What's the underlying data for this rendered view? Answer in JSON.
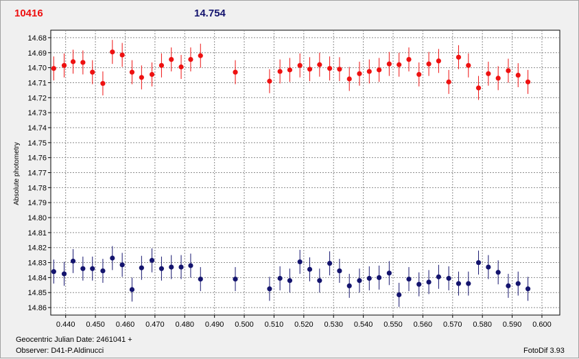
{
  "header": {
    "object_label": "10416",
    "comparison_value": "14.754"
  },
  "footer": {
    "date_label": "Geocentric Julian Date: 2461041 +",
    "observer_label": "Observer: D41-P.Aldinucci",
    "software_label": "FotoDif 3.93"
  },
  "chart_data": {
    "type": "scatter",
    "title": "",
    "xlabel": "",
    "ylabel": "Absolute photometry",
    "xlim": [
      0.435,
      0.606
    ],
    "ylim": [
      14.675,
      14.865
    ],
    "y_inverted": true,
    "grid": true,
    "x_ticks": [
      "0.440",
      "0.450",
      "0.460",
      "0.470",
      "0.480",
      "0.490",
      "0.500",
      "0.510",
      "0.520",
      "0.530",
      "0.540",
      "0.550",
      "0.560",
      "0.570",
      "0.580",
      "0.590",
      "0.600"
    ],
    "y_ticks": [
      "14.68",
      "14.69",
      "14.70",
      "14.71",
      "14.72",
      "14.73",
      "14.74",
      "14.75",
      "14.76",
      "14.77",
      "14.78",
      "14.79",
      "14.80",
      "14.81",
      "14.82",
      "14.83",
      "14.84",
      "14.85",
      "14.86"
    ],
    "error_bar": 0.008,
    "series": [
      {
        "color": "#ee1111",
        "points": [
          [
            0.436,
            14.7005
          ],
          [
            0.4395,
            14.6985
          ],
          [
            0.4425,
            14.696
          ],
          [
            0.4458,
            14.6965
          ],
          [
            0.449,
            14.703
          ],
          [
            0.4525,
            14.7105
          ],
          [
            0.4557,
            14.6895
          ],
          [
            0.459,
            14.6915
          ],
          [
            0.4623,
            14.703
          ],
          [
            0.4655,
            14.7065
          ],
          [
            0.469,
            14.7045
          ],
          [
            0.4722,
            14.6985
          ],
          [
            0.4755,
            14.6945
          ],
          [
            0.4788,
            14.6995
          ],
          [
            0.482,
            14.6945
          ],
          [
            0.4853,
            14.692
          ],
          [
            0.497,
            14.703
          ],
          [
            0.5085,
            14.709
          ],
          [
            0.512,
            14.7025
          ],
          [
            0.5153,
            14.7015
          ],
          [
            0.5187,
            14.6985
          ],
          [
            0.522,
            14.701
          ],
          [
            0.5253,
            14.698
          ],
          [
            0.5287,
            14.7005
          ],
          [
            0.532,
            14.701
          ],
          [
            0.5353,
            14.7075
          ],
          [
            0.5387,
            14.704
          ],
          [
            0.542,
            14.7025
          ],
          [
            0.5453,
            14.7015
          ],
          [
            0.5487,
            14.6975
          ],
          [
            0.552,
            14.698
          ],
          [
            0.5553,
            14.6945
          ],
          [
            0.5587,
            14.7045
          ],
          [
            0.562,
            14.6975
          ],
          [
            0.5653,
            14.6955
          ],
          [
            0.5687,
            14.7095
          ],
          [
            0.572,
            14.693
          ],
          [
            0.5753,
            14.6985
          ],
          [
            0.5787,
            14.7135
          ],
          [
            0.582,
            14.704
          ],
          [
            0.5853,
            14.707
          ],
          [
            0.5887,
            14.702
          ],
          [
            0.592,
            14.705
          ],
          [
            0.5953,
            14.7095
          ]
        ]
      },
      {
        "color": "#14146e",
        "points": [
          [
            0.436,
            14.836
          ],
          [
            0.4395,
            14.8375
          ],
          [
            0.4425,
            14.829
          ],
          [
            0.4458,
            14.834
          ],
          [
            0.449,
            14.834
          ],
          [
            0.4525,
            14.8355
          ],
          [
            0.4557,
            14.827
          ],
          [
            0.459,
            14.8315
          ],
          [
            0.4623,
            14.848
          ],
          [
            0.4655,
            14.8335
          ],
          [
            0.469,
            14.8285
          ],
          [
            0.4722,
            14.834
          ],
          [
            0.4755,
            14.833
          ],
          [
            0.4788,
            14.833
          ],
          [
            0.482,
            14.832
          ],
          [
            0.4853,
            14.841
          ],
          [
            0.497,
            14.841
          ],
          [
            0.5085,
            14.8475
          ],
          [
            0.512,
            14.8405
          ],
          [
            0.5153,
            14.842
          ],
          [
            0.5187,
            14.8295
          ],
          [
            0.522,
            14.8345
          ],
          [
            0.5253,
            14.842
          ],
          [
            0.5287,
            14.8305
          ],
          [
            0.532,
            14.8355
          ],
          [
            0.5353,
            14.8455
          ],
          [
            0.5387,
            14.842
          ],
          [
            0.542,
            14.8405
          ],
          [
            0.5453,
            14.84
          ],
          [
            0.5487,
            14.837
          ],
          [
            0.552,
            14.8515
          ],
          [
            0.5553,
            14.841
          ],
          [
            0.5587,
            14.8445
          ],
          [
            0.562,
            14.843
          ],
          [
            0.5653,
            14.8395
          ],
          [
            0.5687,
            14.8405
          ],
          [
            0.572,
            14.844
          ],
          [
            0.5753,
            14.844
          ],
          [
            0.5787,
            14.83
          ],
          [
            0.582,
            14.833
          ],
          [
            0.5853,
            14.8365
          ],
          [
            0.5887,
            14.8455
          ],
          [
            0.592,
            14.844
          ],
          [
            0.5953,
            14.8475
          ]
        ]
      }
    ]
  }
}
